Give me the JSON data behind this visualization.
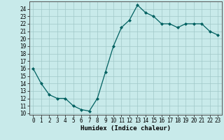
{
  "x": [
    0,
    1,
    2,
    3,
    4,
    5,
    6,
    7,
    8,
    9,
    10,
    11,
    12,
    13,
    14,
    15,
    16,
    17,
    18,
    19,
    20,
    21,
    22,
    23
  ],
  "y": [
    16,
    14,
    12.5,
    12,
    12,
    11,
    10.5,
    10.3,
    12,
    15.5,
    19,
    21.5,
    22.5,
    24.5,
    23.5,
    23,
    22,
    22,
    21.5,
    22,
    22,
    22,
    21,
    20.5
  ],
  "line_color": "#006060",
  "marker": "D",
  "marker_size": 2,
  "bg_color": "#c8eaea",
  "grid_color": "#a0c8c8",
  "xlabel": "Humidex (Indice chaleur)",
  "xlabel_fontsize": 6.5,
  "tick_fontsize": 5.5,
  "ylim": [
    9.8,
    25.0
  ],
  "xlim": [
    -0.5,
    23.5
  ],
  "yticks": [
    10,
    11,
    12,
    13,
    14,
    15,
    16,
    17,
    18,
    19,
    20,
    21,
    22,
    23,
    24
  ],
  "xticks": [
    0,
    1,
    2,
    3,
    4,
    5,
    6,
    7,
    8,
    9,
    10,
    11,
    12,
    13,
    14,
    15,
    16,
    17,
    18,
    19,
    20,
    21,
    22,
    23
  ]
}
